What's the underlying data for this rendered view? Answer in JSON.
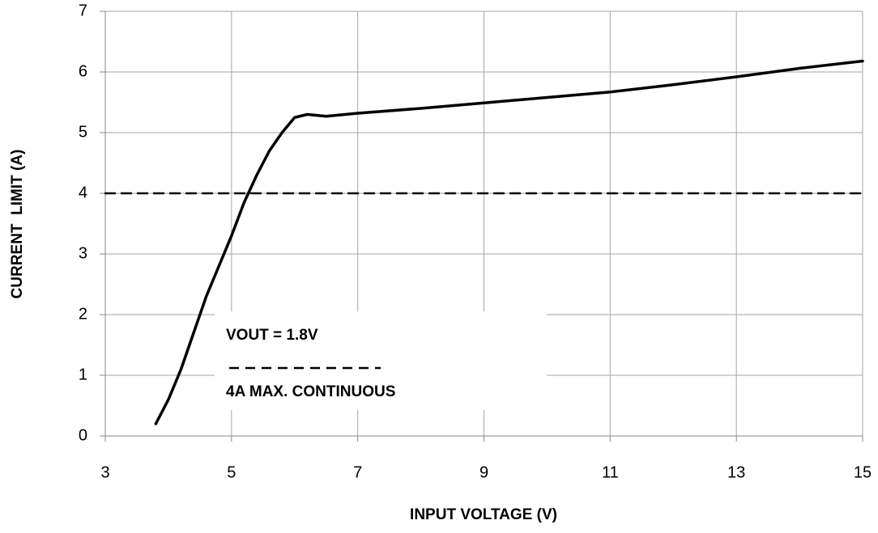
{
  "chart_data": {
    "type": "line",
    "xlabel": "INPUT VOLTAGE (V)",
    "ylabel": "CURRENT  LIMIT (A)",
    "series": [
      {
        "name": "VOUT = 1.8V",
        "color": "#000000",
        "dash": false,
        "x": [
          3.8,
          4.0,
          4.2,
          4.4,
          4.6,
          4.8,
          5.0,
          5.2,
          5.4,
          5.6,
          5.8,
          6.0,
          6.2,
          6.5,
          7,
          8,
          9,
          10,
          11,
          12,
          13,
          14,
          15
        ],
        "values": [
          0.2,
          0.6,
          1.1,
          1.7,
          2.3,
          2.8,
          3.3,
          3.85,
          4.3,
          4.7,
          5.0,
          5.25,
          5.3,
          5.27,
          5.32,
          5.4,
          5.49,
          5.58,
          5.67,
          5.79,
          5.92,
          6.06,
          6.18
        ]
      },
      {
        "name": "4A MAX. CONTINUOUS",
        "color": "#000000",
        "dash": true,
        "x": [
          3,
          15
        ],
        "values": [
          4,
          4
        ]
      }
    ],
    "xlim": [
      3,
      15
    ],
    "xticks": [
      3,
      5,
      7,
      9,
      11,
      13,
      15
    ],
    "ylim": [
      0,
      7
    ],
    "yticks": [
      0,
      1,
      2,
      3,
      4,
      5,
      6,
      7
    ],
    "grid": true,
    "legend": "lower center"
  }
}
